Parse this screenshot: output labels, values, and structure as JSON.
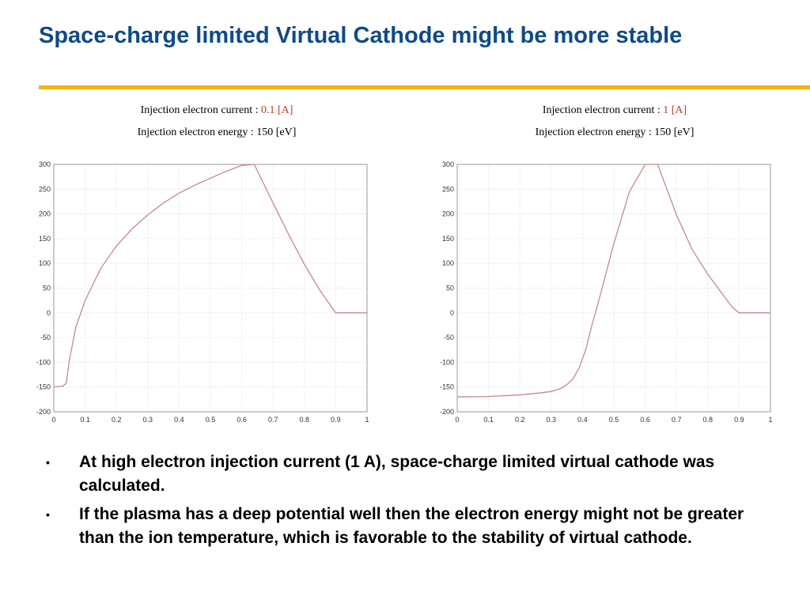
{
  "slide": {
    "title": "Space-charge limited Virtual Cathode might be more stable",
    "accent_color": "#f4b400",
    "title_color": "#0d4a8a"
  },
  "panels": [
    {
      "current_prefix": "Injection electron current : ",
      "current_value": "0.1 [A]",
      "energy_text": "Injection electron energy : 150 [eV]"
    },
    {
      "current_prefix": "Injection electron current : ",
      "current_value": "1 [A]",
      "energy_text": "Injection electron energy : 150 [eV]"
    }
  ],
  "chart_data": [
    {
      "type": "line",
      "title": "",
      "xlabel": "",
      "ylabel": "",
      "xlim": [
        0,
        1
      ],
      "ylim": [
        -200,
        300
      ],
      "xticks": [
        0,
        0.1,
        0.2,
        0.3,
        0.4,
        0.5,
        0.6,
        0.7,
        0.8,
        0.9,
        1
      ],
      "xtick_labels": [
        "0",
        "0.1",
        "0.2",
        "0.3",
        "0.4",
        "0.5",
        "0.6",
        "0.7",
        "0.8",
        "0.9",
        "1"
      ],
      "yticks": [
        -200,
        -150,
        -100,
        -50,
        0,
        50,
        100,
        150,
        200,
        250,
        300
      ],
      "ytick_labels": [
        "-200",
        "-150",
        "-100",
        "-50",
        "0",
        "50",
        "100",
        "150",
        "200",
        "250",
        "300"
      ],
      "grid": true,
      "line_color": "#c48a8a",
      "series": [
        {
          "x": [
            0,
            0.03,
            0.04,
            0.05,
            0.07,
            0.1,
            0.15,
            0.2,
            0.25,
            0.3,
            0.35,
            0.4,
            0.45,
            0.5,
            0.55,
            0.6,
            0.64,
            0.7,
            0.75,
            0.8,
            0.85,
            0.9,
            1.0
          ],
          "y": [
            -150,
            -148,
            -142,
            -95,
            -30,
            25,
            90,
            135,
            170,
            198,
            222,
            242,
            258,
            272,
            286,
            298,
            300,
            222,
            158,
            98,
            45,
            0,
            0
          ]
        }
      ]
    },
    {
      "type": "line",
      "title": "",
      "xlabel": "",
      "ylabel": "",
      "xlim": [
        0,
        1
      ],
      "ylim": [
        -200,
        300
      ],
      "xticks": [
        0,
        0.1,
        0.2,
        0.3,
        0.4,
        0.5,
        0.6,
        0.7,
        0.8,
        0.9,
        1
      ],
      "xtick_labels": [
        "0",
        "0.1",
        "0.2",
        "0.3",
        "0.4",
        "0.5",
        "0.6",
        "0.7",
        "0.8",
        "0.9",
        "1"
      ],
      "yticks": [
        -200,
        -150,
        -100,
        -50,
        0,
        50,
        100,
        150,
        200,
        250,
        300
      ],
      "ytick_labels": [
        "-200",
        "-150",
        "-100",
        "-50",
        "0",
        "50",
        "100",
        "150",
        "200",
        "250",
        "300"
      ],
      "grid": true,
      "line_color": "#c48a8a",
      "series": [
        {
          "x": [
            0,
            0.1,
            0.2,
            0.25,
            0.3,
            0.33,
            0.35,
            0.37,
            0.39,
            0.41,
            0.43,
            0.45,
            0.5,
            0.55,
            0.6,
            0.64,
            0.7,
            0.75,
            0.8,
            0.85,
            0.88,
            0.9,
            1.0
          ],
          "y": [
            -170,
            -169,
            -166,
            -163,
            -159,
            -153,
            -145,
            -133,
            -110,
            -75,
            -25,
            20,
            140,
            245,
            300,
            300,
            198,
            128,
            78,
            35,
            10,
            0,
            0
          ]
        }
      ]
    }
  ],
  "bullets": [
    "At high electron injection current (1 A), space-charge limited virtual cathode was calculated.",
    "If the plasma has a deep potential well then the electron energy might not be greater than the ion temperature, which is favorable to the stability of virtual cathode."
  ]
}
